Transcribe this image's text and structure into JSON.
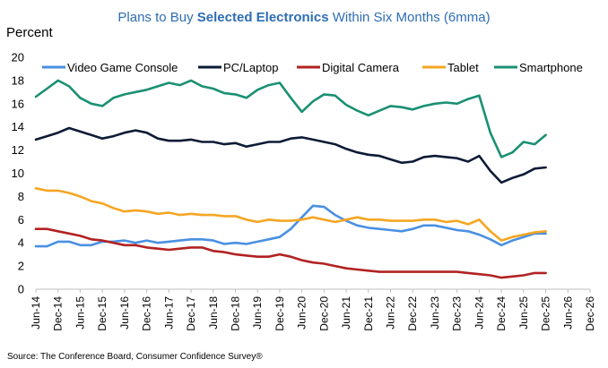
{
  "chart_data": {
    "type": "line",
    "title_parts": [
      {
        "text": "Plans to Buy ",
        "bold": false
      },
      {
        "text": "Selected Electronics",
        "bold": true
      },
      {
        "text": " Within Six Months (6mma)",
        "bold": false
      }
    ],
    "ylabel": "Percent",
    "ylim": [
      0,
      20
    ],
    "yticks": [
      0,
      2,
      4,
      6,
      8,
      10,
      12,
      14,
      16,
      18,
      20
    ],
    "x_range": [
      "2014-06",
      "2026-12"
    ],
    "x_tick_labels": [
      "Jun-14",
      "Dec-14",
      "Jun-15",
      "Dec-15",
      "Jun-16",
      "Dec-16",
      "Jun-17",
      "Dec-17",
      "Jun-18",
      "Dec-18",
      "Jun-19",
      "Dec-19",
      "Jun-20",
      "Dec-20",
      "Jun-21",
      "Dec-21",
      "Jun-22",
      "Dec-22",
      "Jun-23",
      "Dec-23",
      "Jun-24",
      "Dec-24",
      "Jun-25",
      "Dec-25",
      "Jun-26",
      "Dec-26"
    ],
    "grid": false,
    "legend_position": "top",
    "source": "Source: The Conference Board, Consumer Confidence Survey®",
    "series": [
      {
        "name": "Video Game Console",
        "color": "#4a90e2",
        "points": [
          [
            "2014-06",
            3.7
          ],
          [
            "2014-09",
            3.7
          ],
          [
            "2014-12",
            4.1
          ],
          [
            "2015-03",
            4.1
          ],
          [
            "2015-06",
            3.8
          ],
          [
            "2015-09",
            3.8
          ],
          [
            "2015-12",
            4.1
          ],
          [
            "2016-03",
            4.1
          ],
          [
            "2016-06",
            4.2
          ],
          [
            "2016-09",
            4.0
          ],
          [
            "2016-12",
            4.2
          ],
          [
            "2017-03",
            4.0
          ],
          [
            "2017-06",
            4.1
          ],
          [
            "2017-09",
            4.2
          ],
          [
            "2017-12",
            4.3
          ],
          [
            "2018-03",
            4.3
          ],
          [
            "2018-06",
            4.2
          ],
          [
            "2018-09",
            3.9
          ],
          [
            "2018-12",
            4.0
          ],
          [
            "2019-03",
            3.9
          ],
          [
            "2019-06",
            4.1
          ],
          [
            "2019-09",
            4.3
          ],
          [
            "2019-12",
            4.5
          ],
          [
            "2020-03",
            5.2
          ],
          [
            "2020-06",
            6.2
          ],
          [
            "2020-09",
            7.2
          ],
          [
            "2020-12",
            7.1
          ],
          [
            "2021-03",
            6.4
          ],
          [
            "2021-06",
            5.9
          ],
          [
            "2021-09",
            5.5
          ],
          [
            "2021-12",
            5.3
          ],
          [
            "2022-03",
            5.2
          ],
          [
            "2022-06",
            5.1
          ],
          [
            "2022-09",
            5.0
          ],
          [
            "2022-12",
            5.2
          ],
          [
            "2023-03",
            5.5
          ],
          [
            "2023-06",
            5.5
          ],
          [
            "2023-09",
            5.3
          ],
          [
            "2023-12",
            5.1
          ],
          [
            "2024-03",
            5.0
          ],
          [
            "2024-06",
            4.7
          ],
          [
            "2024-09",
            4.3
          ],
          [
            "2024-12",
            3.8
          ],
          [
            "2025-03",
            4.2
          ],
          [
            "2025-06",
            4.5
          ],
          [
            "2025-09",
            4.8
          ],
          [
            "2025-12",
            4.8
          ]
        ]
      },
      {
        "name": "PC/Laptop",
        "color": "#0d1b36",
        "points": [
          [
            "2014-06",
            12.9
          ],
          [
            "2014-09",
            13.2
          ],
          [
            "2014-12",
            13.5
          ],
          [
            "2015-03",
            13.9
          ],
          [
            "2015-06",
            13.6
          ],
          [
            "2015-09",
            13.3
          ],
          [
            "2015-12",
            13.0
          ],
          [
            "2016-03",
            13.2
          ],
          [
            "2016-06",
            13.5
          ],
          [
            "2016-09",
            13.7
          ],
          [
            "2016-12",
            13.5
          ],
          [
            "2017-03",
            13.0
          ],
          [
            "2017-06",
            12.8
          ],
          [
            "2017-09",
            12.8
          ],
          [
            "2017-12",
            12.9
          ],
          [
            "2018-03",
            12.7
          ],
          [
            "2018-06",
            12.7
          ],
          [
            "2018-09",
            12.5
          ],
          [
            "2018-12",
            12.6
          ],
          [
            "2019-03",
            12.3
          ],
          [
            "2019-06",
            12.5
          ],
          [
            "2019-09",
            12.7
          ],
          [
            "2019-12",
            12.7
          ],
          [
            "2020-03",
            13.0
          ],
          [
            "2020-06",
            13.1
          ],
          [
            "2020-09",
            12.9
          ],
          [
            "2020-12",
            12.7
          ],
          [
            "2021-03",
            12.5
          ],
          [
            "2021-06",
            12.1
          ],
          [
            "2021-09",
            11.8
          ],
          [
            "2021-12",
            11.6
          ],
          [
            "2022-03",
            11.5
          ],
          [
            "2022-06",
            11.2
          ],
          [
            "2022-09",
            10.9
          ],
          [
            "2022-12",
            11.0
          ],
          [
            "2023-03",
            11.4
          ],
          [
            "2023-06",
            11.5
          ],
          [
            "2023-09",
            11.4
          ],
          [
            "2023-12",
            11.3
          ],
          [
            "2024-03",
            11.0
          ],
          [
            "2024-06",
            11.5
          ],
          [
            "2024-09",
            10.2
          ],
          [
            "2024-12",
            9.2
          ],
          [
            "2025-03",
            9.6
          ],
          [
            "2025-06",
            9.9
          ],
          [
            "2025-09",
            10.4
          ],
          [
            "2025-12",
            10.5
          ]
        ]
      },
      {
        "name": "Digital Camera",
        "color": "#b22222",
        "points": [
          [
            "2014-06",
            5.2
          ],
          [
            "2014-09",
            5.2
          ],
          [
            "2014-12",
            5.0
          ],
          [
            "2015-03",
            4.8
          ],
          [
            "2015-06",
            4.6
          ],
          [
            "2015-09",
            4.3
          ],
          [
            "2015-12",
            4.2
          ],
          [
            "2016-03",
            4.0
          ],
          [
            "2016-06",
            3.8
          ],
          [
            "2016-09",
            3.8
          ],
          [
            "2016-12",
            3.6
          ],
          [
            "2017-03",
            3.5
          ],
          [
            "2017-06",
            3.4
          ],
          [
            "2017-09",
            3.5
          ],
          [
            "2017-12",
            3.6
          ],
          [
            "2018-03",
            3.6
          ],
          [
            "2018-06",
            3.3
          ],
          [
            "2018-09",
            3.2
          ],
          [
            "2018-12",
            3.0
          ],
          [
            "2019-03",
            2.9
          ],
          [
            "2019-06",
            2.8
          ],
          [
            "2019-09",
            2.8
          ],
          [
            "2019-12",
            3.0
          ],
          [
            "2020-03",
            2.8
          ],
          [
            "2020-06",
            2.5
          ],
          [
            "2020-09",
            2.3
          ],
          [
            "2020-12",
            2.2
          ],
          [
            "2021-03",
            2.0
          ],
          [
            "2021-06",
            1.8
          ],
          [
            "2021-09",
            1.7
          ],
          [
            "2021-12",
            1.6
          ],
          [
            "2022-03",
            1.5
          ],
          [
            "2022-06",
            1.5
          ],
          [
            "2022-09",
            1.5
          ],
          [
            "2022-12",
            1.5
          ],
          [
            "2023-03",
            1.5
          ],
          [
            "2023-06",
            1.5
          ],
          [
            "2023-09",
            1.5
          ],
          [
            "2023-12",
            1.5
          ],
          [
            "2024-03",
            1.4
          ],
          [
            "2024-06",
            1.3
          ],
          [
            "2024-09",
            1.2
          ],
          [
            "2024-12",
            1.0
          ],
          [
            "2025-03",
            1.1
          ],
          [
            "2025-06",
            1.2
          ],
          [
            "2025-09",
            1.4
          ],
          [
            "2025-12",
            1.4
          ]
        ]
      },
      {
        "name": "Tablet",
        "color": "#f5a623",
        "points": [
          [
            "2014-06",
            8.7
          ],
          [
            "2014-09",
            8.5
          ],
          [
            "2014-12",
            8.5
          ],
          [
            "2015-03",
            8.3
          ],
          [
            "2015-06",
            8.0
          ],
          [
            "2015-09",
            7.6
          ],
          [
            "2015-12",
            7.4
          ],
          [
            "2016-03",
            7.0
          ],
          [
            "2016-06",
            6.7
          ],
          [
            "2016-09",
            6.8
          ],
          [
            "2016-12",
            6.7
          ],
          [
            "2017-03",
            6.5
          ],
          [
            "2017-06",
            6.6
          ],
          [
            "2017-09",
            6.4
          ],
          [
            "2017-12",
            6.5
          ],
          [
            "2018-03",
            6.4
          ],
          [
            "2018-06",
            6.4
          ],
          [
            "2018-09",
            6.3
          ],
          [
            "2018-12",
            6.3
          ],
          [
            "2019-03",
            6.0
          ],
          [
            "2019-06",
            5.8
          ],
          [
            "2019-09",
            6.0
          ],
          [
            "2019-12",
            5.9
          ],
          [
            "2020-03",
            5.9
          ],
          [
            "2020-06",
            6.0
          ],
          [
            "2020-09",
            6.2
          ],
          [
            "2020-12",
            6.0
          ],
          [
            "2021-03",
            5.8
          ],
          [
            "2021-06",
            6.0
          ],
          [
            "2021-09",
            6.2
          ],
          [
            "2021-12",
            6.0
          ],
          [
            "2022-03",
            6.0
          ],
          [
            "2022-06",
            5.9
          ],
          [
            "2022-09",
            5.9
          ],
          [
            "2022-12",
            5.9
          ],
          [
            "2023-03",
            6.0
          ],
          [
            "2023-06",
            6.0
          ],
          [
            "2023-09",
            5.8
          ],
          [
            "2023-12",
            5.9
          ],
          [
            "2024-03",
            5.6
          ],
          [
            "2024-06",
            6.0
          ],
          [
            "2024-09",
            5.0
          ],
          [
            "2024-12",
            4.2
          ],
          [
            "2025-03",
            4.5
          ],
          [
            "2025-06",
            4.7
          ],
          [
            "2025-09",
            4.9
          ],
          [
            "2025-12",
            5.0
          ]
        ]
      },
      {
        "name": "Smartphone",
        "color": "#1a9073",
        "points": [
          [
            "2014-06",
            16.6
          ],
          [
            "2014-09",
            17.3
          ],
          [
            "2014-12",
            18.0
          ],
          [
            "2015-03",
            17.5
          ],
          [
            "2015-06",
            16.5
          ],
          [
            "2015-09",
            16.0
          ],
          [
            "2015-12",
            15.8
          ],
          [
            "2016-03",
            16.5
          ],
          [
            "2016-06",
            16.8
          ],
          [
            "2016-09",
            17.0
          ],
          [
            "2016-12",
            17.2
          ],
          [
            "2017-03",
            17.5
          ],
          [
            "2017-06",
            17.8
          ],
          [
            "2017-09",
            17.6
          ],
          [
            "2017-12",
            18.0
          ],
          [
            "2018-03",
            17.5
          ],
          [
            "2018-06",
            17.3
          ],
          [
            "2018-09",
            16.9
          ],
          [
            "2018-12",
            16.8
          ],
          [
            "2019-03",
            16.5
          ],
          [
            "2019-06",
            17.2
          ],
          [
            "2019-09",
            17.6
          ],
          [
            "2019-12",
            17.8
          ],
          [
            "2020-03",
            16.5
          ],
          [
            "2020-06",
            15.3
          ],
          [
            "2020-09",
            16.2
          ],
          [
            "2020-12",
            16.8
          ],
          [
            "2021-03",
            16.7
          ],
          [
            "2021-06",
            15.9
          ],
          [
            "2021-09",
            15.4
          ],
          [
            "2021-12",
            15.0
          ],
          [
            "2022-03",
            15.4
          ],
          [
            "2022-06",
            15.8
          ],
          [
            "2022-09",
            15.7
          ],
          [
            "2022-12",
            15.5
          ],
          [
            "2023-03",
            15.8
          ],
          [
            "2023-06",
            16.0
          ],
          [
            "2023-09",
            16.1
          ],
          [
            "2023-12",
            16.0
          ],
          [
            "2024-03",
            16.4
          ],
          [
            "2024-06",
            16.7
          ],
          [
            "2024-09",
            13.5
          ],
          [
            "2024-12",
            11.4
          ],
          [
            "2025-03",
            11.8
          ],
          [
            "2025-06",
            12.7
          ],
          [
            "2025-09",
            12.5
          ],
          [
            "2025-12",
            13.3
          ]
        ]
      }
    ]
  }
}
